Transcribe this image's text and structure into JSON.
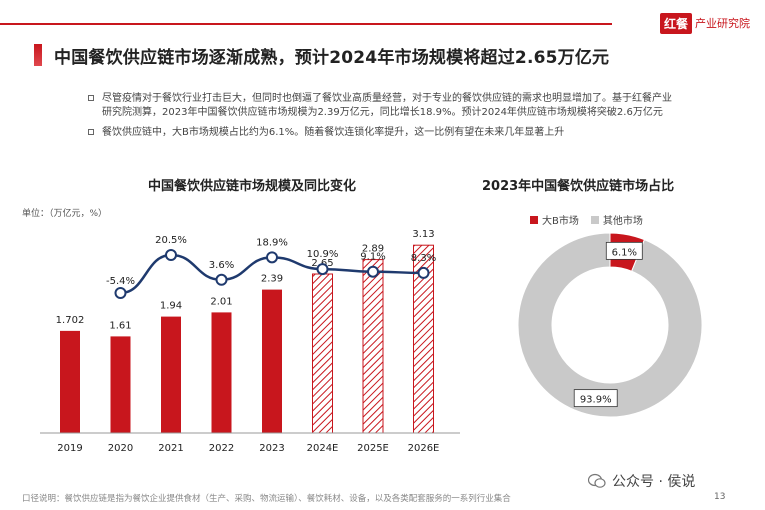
{
  "header": {
    "brand_badge": "红餐",
    "brand_name": "产业研究院",
    "title": "中国餐饮供应链市场逐渐成熟，预计2024年市场规模将超过2.65万亿元"
  },
  "bullets": [
    "尽管疫情对于餐饮行业打击巨大，但同时也倒逼了餐饮业高质量经营，对于专业的餐饮供应链的需求也明显增加了。基于红餐产业研究院测算，2023年中国餐饮供应链市场规模为2.39万亿元，同比增长18.9%。预计2024年供应链市场规模将突破2.6万亿元",
    "餐饮供应链中，大B市场规模占比约为6.1%。随着餐饮连锁化率提升，这一比例有望在未来几年显著上升"
  ],
  "footer": {
    "note": "口径说明：餐饮供应链是指为餐饮企业提供食材（生产、采购、物流运输）、餐饮耗材、设备，以及各类配套服务的一系列行业集合",
    "page_number": "13",
    "wechat_label": "公众号 · 侯说"
  },
  "colors": {
    "accent": "#c8161d",
    "line": "#1f3a6e",
    "grey": "#c9c9c9"
  },
  "chart_data": [
    {
      "type": "bar",
      "title": "中国餐饮供应链市场规模及同比变化",
      "unit_label": "单位：（万亿元，%）",
      "categories": [
        "2019",
        "2020",
        "2021",
        "2022",
        "2023",
        "2024E",
        "2025E",
        "2026E"
      ],
      "series": [
        {
          "values": [
            1.702,
            1.61,
            1.94,
            2.01,
            2.39,
            2.65,
            2.89,
            3.13
          ],
          "labels": [
            "1.702",
            "1.61",
            "1.94",
            "2.01",
            "2.39",
            "2.65",
            "2.89",
            "3.13"
          ],
          "forecast_from_index": 5
        }
      ],
      "line": {
        "type": "line",
        "x_categories": [
          "2020",
          "2021",
          "2022",
          "2023",
          "2024E",
          "2025E",
          "2026E"
        ],
        "values": [
          -5.4,
          20.5,
          3.6,
          18.9,
          10.9,
          9.1,
          8.3
        ],
        "labels": [
          "-5.4%",
          "20.5%",
          "3.6%",
          "18.9%",
          "10.9%",
          "9.1%",
          "8.3%"
        ]
      },
      "grid": false
    },
    {
      "type": "pie",
      "style": "donut",
      "title": "2023年中国餐饮供应链市场占比",
      "legend_position": "top",
      "slices": [
        {
          "name": "大B市场",
          "value": 6.1,
          "label": "6.1%",
          "color": "#c8161d"
        },
        {
          "name": "其他市场",
          "value": 93.9,
          "label": "93.9%",
          "color": "#c9c9c9"
        }
      ]
    }
  ]
}
